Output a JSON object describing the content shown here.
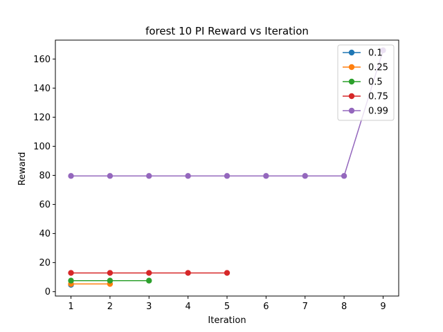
{
  "chart_data": {
    "type": "line",
    "title": "forest 10 PI Reward vs Iteration",
    "xlabel": "Iteration",
    "ylabel": "Reward",
    "xlim": [
      0.6,
      9.4
    ],
    "ylim": [
      -3,
      173
    ],
    "xticks": [
      1,
      2,
      3,
      4,
      5,
      6,
      7,
      8,
      9
    ],
    "yticks": [
      0,
      20,
      40,
      60,
      80,
      100,
      120,
      140,
      160
    ],
    "grid": false,
    "legend_position": "top-right",
    "series": [
      {
        "name": "0.1",
        "color": "#1f77b4",
        "x": [
          1
        ],
        "y": [
          4.7
        ]
      },
      {
        "name": "0.25",
        "color": "#ff7f0e",
        "x": [
          1,
          2
        ],
        "y": [
          5.3,
          5.3
        ]
      },
      {
        "name": "0.5",
        "color": "#2ca02c",
        "x": [
          1,
          2,
          3
        ],
        "y": [
          7.6,
          7.6,
          7.6
        ]
      },
      {
        "name": "0.75",
        "color": "#d62728",
        "x": [
          1,
          2,
          3,
          4,
          5
        ],
        "y": [
          12.9,
          12.9,
          12.9,
          12.9,
          12.9
        ]
      },
      {
        "name": "0.99",
        "color": "#9467bd",
        "x": [
          1,
          2,
          3,
          4,
          5,
          6,
          7,
          8,
          9
        ],
        "y": [
          79.6,
          79.6,
          79.6,
          79.6,
          79.6,
          79.6,
          79.6,
          79.6,
          166
        ]
      }
    ]
  }
}
